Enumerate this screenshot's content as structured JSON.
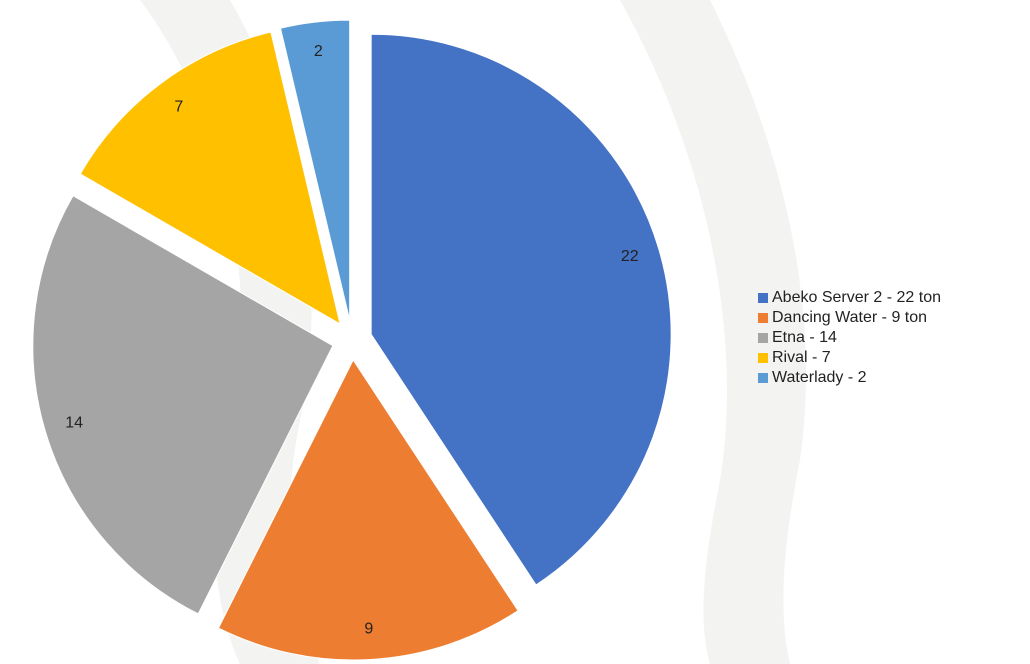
{
  "chart_data": {
    "type": "pie",
    "categories": [
      "Abeko Server 2 - 22 ton",
      "Dancing Water - 9 ton",
      "Etna - 14",
      "Rival - 7",
      "Waterlady - 2"
    ],
    "values": [
      22,
      9,
      14,
      7,
      2
    ],
    "colors": [
      "#4472c4",
      "#ed7d31",
      "#a5a5a5",
      "#ffc000",
      "#5b9bd5"
    ],
    "legend": "right"
  }
}
